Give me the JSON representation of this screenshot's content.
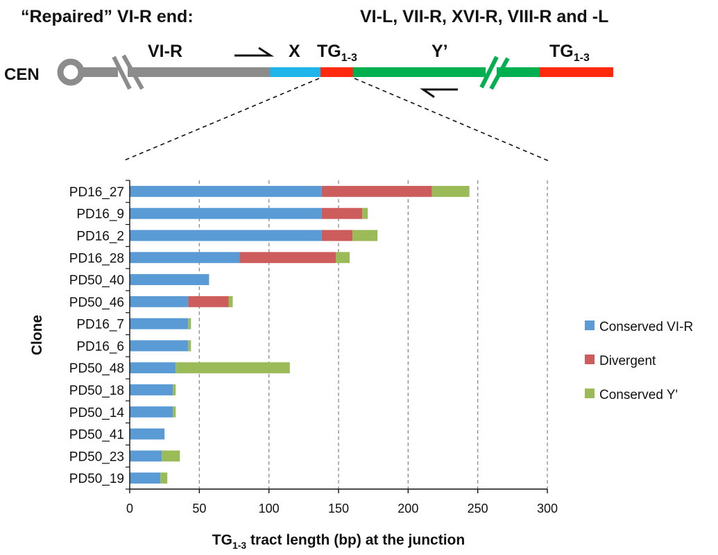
{
  "header": {
    "repaired_title": "“Repaired” VI-R end:",
    "donor_title": "VI-L, VII-R, XVI-R, VIII-R and -L",
    "cen_label": "CEN",
    "vir_label": "VI-R",
    "x_label": "X",
    "tg_base": "TG",
    "tg_sub": "1-3",
    "yprime_label": "Y’",
    "tg2_base": "TG",
    "tg2_sub": "1-3"
  },
  "colors": {
    "gray_segment": "#8c8c8c",
    "x_segment": "#1fb5ea",
    "tg_segment": "#ff2a0e",
    "yprime_segment": "#00b050",
    "conserved_vir": "#5b9bd5",
    "divergent": "#cd5c5c",
    "conserved_yprime": "#9bbb59"
  },
  "chart_data": {
    "type": "bar",
    "orientation": "horizontal",
    "stacked": true,
    "categories": [
      "PD16_27",
      "PD16_9",
      "PD16_2",
      "PD16_28",
      "PD50_40",
      "PD50_46",
      "PD16_7",
      "PD16_6",
      "PD50_48",
      "PD50_18",
      "PD50_14",
      "PD50_41",
      "PD50_23",
      "PD50_19"
    ],
    "series": [
      {
        "name": "Conserved VI-R",
        "color": "#5b9bd5",
        "values": [
          138,
          138,
          138,
          79,
          57,
          42,
          42,
          42,
          33,
          31,
          31,
          25,
          23,
          22
        ]
      },
      {
        "name": "Divergent",
        "color": "#cd5c5c",
        "values": [
          79,
          29,
          22,
          69,
          0,
          29,
          0,
          0,
          0,
          0,
          0,
          0,
          0,
          0
        ]
      },
      {
        "name": "Conserved Y'",
        "color": "#9bbb59",
        "values": [
          27,
          4,
          18,
          10,
          0,
          3,
          2,
          2,
          82,
          2,
          2,
          0,
          13,
          5
        ]
      }
    ],
    "xlim": [
      0,
      300
    ],
    "xticks": [
      "0",
      "50",
      "100",
      "150",
      "200",
      "250",
      "300"
    ],
    "ylabel": "Clone",
    "xlabel_base": "TG",
    "xlabel_sub": "1-3",
    "xlabel_rest": " tract length (bp) at the junction",
    "grid": "vertical dashed",
    "legend_position": "right"
  }
}
